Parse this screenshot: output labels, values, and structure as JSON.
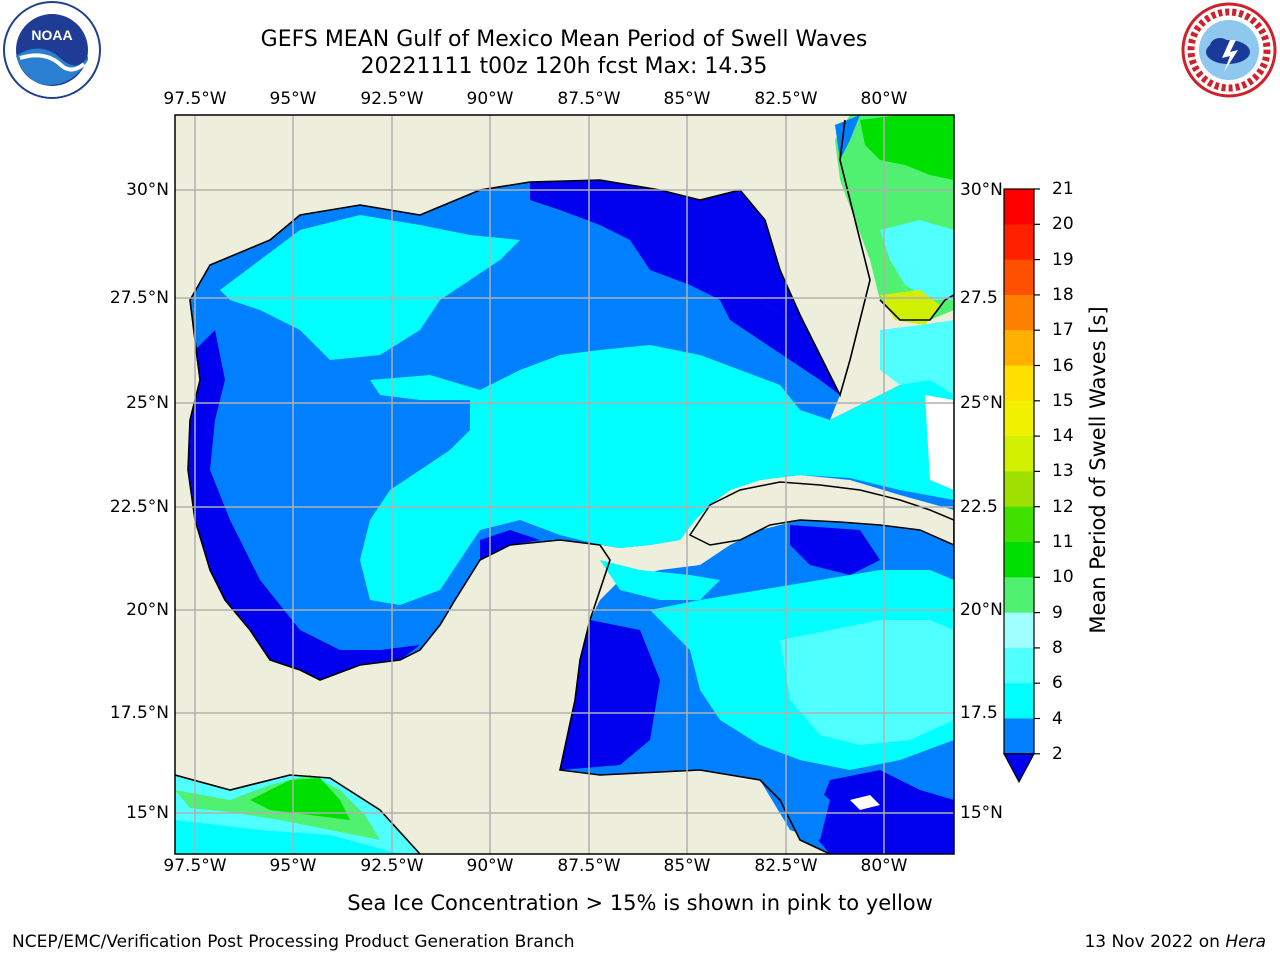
{
  "header": {
    "title_line1": "GEFS MEAN Gulf of Mexico Mean Period of Swell Waves",
    "title_line2": "20221111 t00z 120h fcst   Max: 14.35"
  },
  "logos": {
    "left": "NOAA",
    "left_ring_text": "NATIONAL OCEANIC AND ATMOSPHERIC ADMINISTRATION · U.S. DEPARTMENT OF COMMERCE",
    "right_ring_text": "NATIONAL WEATHER SERVICE"
  },
  "map": {
    "lon_labels": [
      "97.5°W",
      "95°W",
      "92.5°W",
      "90°W",
      "87.5°W",
      "85°W",
      "82.5°W",
      "80°W"
    ],
    "lat_labels_left": [
      "30°N",
      "27.5°N",
      "25°N",
      "22.5°N",
      "20°N",
      "17.5°N",
      "15°N"
    ],
    "lat_labels_right": [
      "30°N",
      "27.5",
      "25°N",
      "22.5",
      "20°N",
      "17.5",
      "15°N"
    ],
    "colors": {
      "land": "#eeeedd",
      "grid": "#b0b0b0",
      "coast": "#000000"
    }
  },
  "colorbar": {
    "label": "Mean Period of Swell Waves [s]",
    "ticks": [
      "2",
      "4",
      "6",
      "8",
      "9",
      "10",
      "11",
      "12",
      "13",
      "14",
      "15",
      "16",
      "17",
      "18",
      "19",
      "20",
      "21"
    ],
    "colors": [
      "#0000ee",
      "#0080ff",
      "#00ffff",
      "#50ffff",
      "#a0ffff",
      "#50f070",
      "#00e000",
      "#40e000",
      "#a0e000",
      "#d0f000",
      "#f0f000",
      "#ffe000",
      "#ffb000",
      "#ff8000",
      "#ff5000",
      "#ff2000",
      "#ff0000"
    ]
  },
  "footer": {
    "note": "Sea Ice Concentration > 15% is shown in pink to yellow",
    "credit": "NCEP/EMC/Verification Post Processing Product Generation Branch",
    "date_prefix": "13 Nov 2022 on",
    "date_host": "Hera"
  }
}
